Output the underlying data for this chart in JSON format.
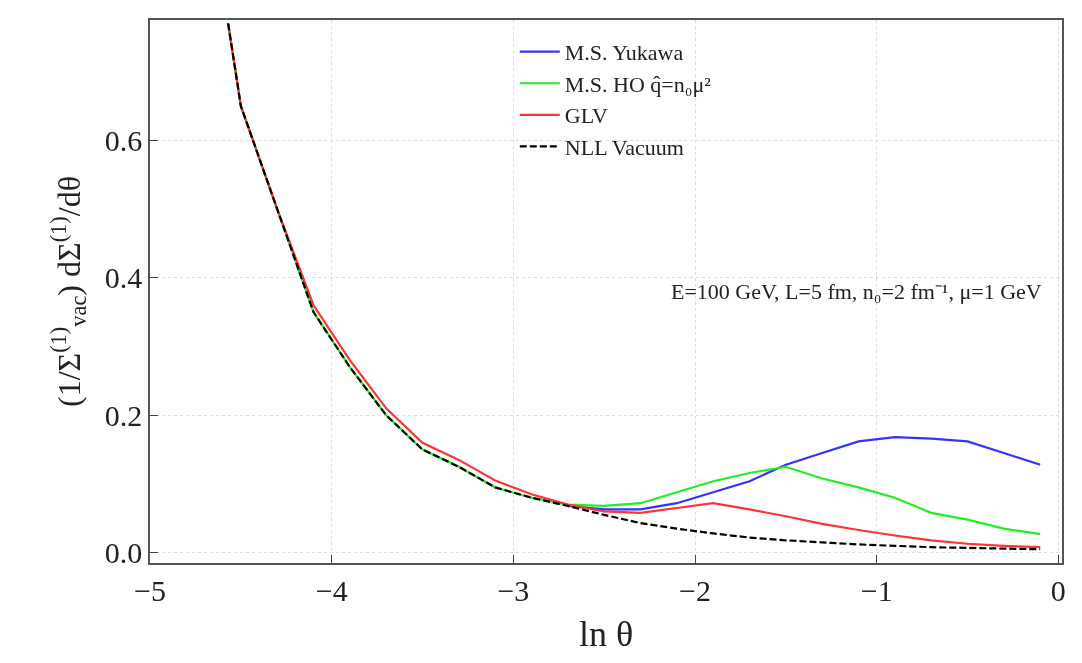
{
  "chart_data": {
    "type": "line",
    "xlabel": "ln θ",
    "ylabel": "(1/Σ$^{(1)}$$_{vac}$) dΣ$^{(1)}$/dθ",
    "annotations": [
      "E=100 GeV, L=5 fm, n₀=2 fm⁻¹, μ=1 GeV"
    ],
    "x": [
      -4.57,
      -4.5,
      -4.3,
      -4.1,
      -3.9,
      -3.7,
      -3.5,
      -3.3,
      -3.1,
      -2.9,
      -2.7,
      -2.5,
      -2.3,
      -2.1,
      -1.9,
      -1.7,
      -1.5,
      -1.3,
      -1.1,
      -0.9,
      -0.7,
      -0.5,
      -0.3,
      -0.1
    ],
    "series": [
      {
        "name": "M.S. Yukawa",
        "color": "#3333ff",
        "values": [
          null,
          null,
          null,
          null,
          null,
          null,
          null,
          null,
          null,
          null,
          0.068,
          0.063,
          0.063,
          0.072,
          0.088,
          0.104,
          0.128,
          0.145,
          0.162,
          0.168,
          0.166,
          0.162,
          0.145,
          0.128
        ]
      },
      {
        "name": "M.S. HO q̂=n₀μ²",
        "color": "#22ee22",
        "values": [
          0.77,
          0.65,
          0.5,
          0.35,
          0.27,
          0.2,
          0.15,
          0.125,
          0.095,
          0.08,
          0.07,
          0.068,
          0.072,
          0.088,
          0.104,
          0.116,
          0.125,
          0.108,
          0.095,
          0.08,
          0.058,
          0.048,
          0.035,
          0.027
        ]
      },
      {
        "name": "GLV",
        "color": "#ff3333",
        "values": [
          0.77,
          0.65,
          0.5,
          0.36,
          0.28,
          0.21,
          0.16,
          0.135,
          0.105,
          0.085,
          0.07,
          0.06,
          0.058,
          0.065,
          0.072,
          0.063,
          0.053,
          0.042,
          0.033,
          0.025,
          0.018,
          0.013,
          0.01,
          0.008
        ]
      },
      {
        "name": "NLL Vacuum",
        "color": "#000000",
        "line_style": "dashed",
        "values": [
          0.77,
          0.65,
          0.5,
          0.35,
          0.27,
          0.2,
          0.15,
          0.125,
          0.095,
          0.08,
          0.068,
          0.055,
          0.043,
          0.035,
          0.028,
          0.022,
          0.018,
          0.015,
          0.012,
          0.01,
          0.008,
          0.007,
          0.006,
          0.005
        ]
      }
    ],
    "xlim": [
      -5,
      0.02
    ],
    "ylim": [
      -0.015,
      0.775
    ],
    "xticks": [
      {
        "value": -5,
        "label": "−5"
      },
      {
        "value": -4,
        "label": "−4"
      },
      {
        "value": -3,
        "label": "−3"
      },
      {
        "value": -2,
        "label": "−2"
      },
      {
        "value": -1,
        "label": "−1"
      },
      0
    ],
    "yticks": [
      {
        "value": 0,
        "label": "0.0"
      },
      0.2,
      0.4,
      0.6
    ],
    "grid": true,
    "legend": "top",
    "line_style": "solid"
  }
}
